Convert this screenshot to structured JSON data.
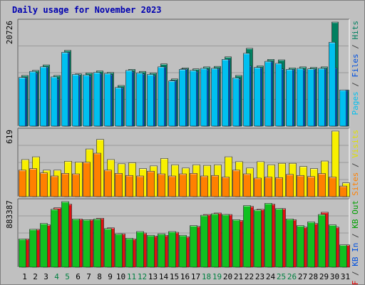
{
  "chart_data": {
    "type": "bar",
    "title": "Daily usage for November 2023",
    "categories": [
      "1",
      "2",
      "3",
      "4",
      "5",
      "6",
      "7",
      "8",
      "9",
      "10",
      "11",
      "12",
      "13",
      "14",
      "15",
      "16",
      "17",
      "18",
      "19",
      "20",
      "21",
      "22",
      "23",
      "24",
      "25",
      "26",
      "27",
      "28",
      "29",
      "30",
      "31"
    ],
    "weekend_days": [
      "4",
      "5",
      "11",
      "12",
      "18",
      "19",
      "25",
      "26"
    ],
    "panels": [
      {
        "name": "pages-files-hits",
        "max_label": "20726",
        "ymax": 20726,
        "side_label_parts": [
          {
            "text": "Pages",
            "color": "#00c0f0"
          },
          {
            "text": " / ",
            "color": "#404040"
          },
          {
            "text": "Files",
            "color": "#0050e0"
          },
          {
            "text": " / ",
            "color": "#404040"
          },
          {
            "text": "Hits",
            "color": "#008060"
          }
        ],
        "series": [
          {
            "name": "Hits",
            "color": "#008060",
            "values": [
              10100,
              11100,
              12200,
              10100,
              15100,
              10400,
              10600,
              11000,
              10700,
              8100,
              11300,
              10900,
              10600,
              12400,
              9400,
              11600,
              11400,
              11800,
              11900,
              13800,
              10100,
              15500,
              12000,
              13300,
              13200,
              11600,
              11800,
              11700,
              11800,
              20726,
              7200
            ]
          },
          {
            "name": "Files",
            "color": "#0050e0",
            "values": [
              9700,
              10600,
              11800,
              9400,
              14700,
              10100,
              10000,
              10500,
              10300,
              7700,
              10900,
              10400,
              10100,
              11800,
              9100,
              11400,
              10900,
              11300,
              11500,
              13300,
              9400,
              12000,
              11700,
              12900,
              11400,
              11300,
              11300,
              11400,
              11500,
              11600,
              7200
            ]
          },
          {
            "name": "Pages",
            "color": "#00c0f0",
            "values": [
              9700,
              10900,
              11800,
              9800,
              14700,
              10300,
              10200,
              10700,
              10500,
              7700,
              11100,
              10600,
              10300,
              11800,
              9000,
              11300,
              11100,
              11500,
              11500,
              13300,
              9600,
              14500,
              11700,
              12900,
              12500,
              11300,
              11500,
              11400,
              11500,
              16700,
              7200
            ]
          }
        ]
      },
      {
        "name": "visits-sites",
        "max_label": "619",
        "ymax": 619,
        "side_label_parts": [
          {
            "text": "Sites",
            "color": "#ff8000"
          },
          {
            "text": " / ",
            "color": "#404040"
          },
          {
            "text": "Visits",
            "color": "#e0e000"
          }
        ],
        "series": [
          {
            "name": "Visits",
            "color": "#f8f000",
            "values": [
              350,
              376,
              250,
              250,
              334,
              326,
              450,
              540,
              350,
              310,
              320,
              265,
              290,
              360,
              300,
              270,
              300,
              295,
              300,
              376,
              330,
              270,
              330,
              300,
              315,
              315,
              285,
              265,
              336,
              619,
              130
            ]
          },
          {
            "name": "Sites",
            "color": "#ff8000",
            "values": [
              250,
              265,
              225,
              195,
              220,
              215,
              325,
              410,
              250,
              220,
              200,
              195,
              240,
              215,
              195,
              215,
              220,
              195,
              200,
              185,
              250,
              215,
              175,
              185,
              180,
              210,
              200,
              190,
              218,
              185,
              100
            ]
          }
        ]
      },
      {
        "name": "kb-in-out",
        "max_label": "883387",
        "ymax": 883387,
        "side_label_parts": [
          {
            "text": "KB F",
            "color": "#e00000"
          },
          {
            "text": " / ",
            "color": "#404040"
          },
          {
            "text": "KB In",
            "color": "#0050e0"
          },
          {
            "text": " / ",
            "color": "#404040"
          },
          {
            "text": "KB Out",
            "color": "#00a000"
          }
        ],
        "series": [
          {
            "name": "KB F",
            "color": "#e01010",
            "values": [
              380000,
              510000,
              570000,
              800000,
              850000,
              650000,
              640000,
              660000,
              530000,
              450000,
              380000,
              460000,
              420000,
              430000,
              470000,
              410000,
              550000,
              710000,
              730000,
              710000,
              630000,
              820000,
              780000,
              850000,
              790000,
              640000,
              540000,
              590000,
              740000,
              540000,
              300000
            ]
          },
          {
            "name": "KB Out",
            "color": "#10c020",
            "values": [
              380000,
              510000,
              590000,
              780000,
              883387,
              650000,
              640000,
              650000,
              520000,
              450000,
              390000,
              480000,
              430000,
              450000,
              480000,
              430000,
              560000,
              700000,
              720000,
              710000,
              640000,
              830000,
              770000,
              860000,
              790000,
              650000,
              560000,
              610000,
              710000,
              570000,
              300000
            ]
          }
        ]
      }
    ]
  }
}
